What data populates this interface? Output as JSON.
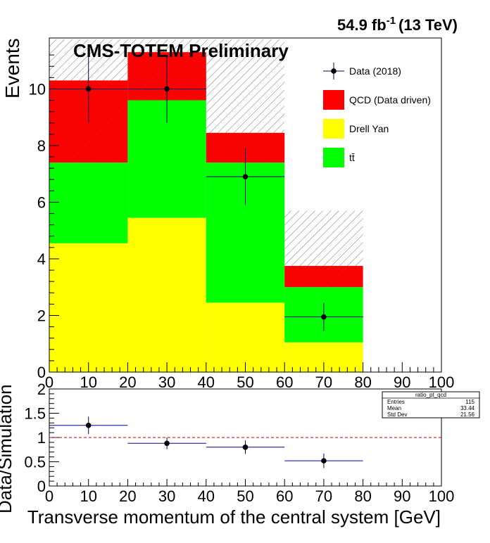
{
  "header": {
    "lumi_value": "54.9 fb",
    "lumi_exp": "-1",
    "lumi_energy": "(13 TeV)",
    "collab": "CMS-TOTEM Preliminary"
  },
  "chart_data": [
    {
      "type": "bar",
      "stacked": true,
      "bin_edges": [
        0,
        20,
        40,
        60,
        80
      ],
      "categories": [
        "0-20",
        "20-40",
        "40-60",
        "60-80"
      ],
      "series": [
        {
          "name": "Drell Yan",
          "values": [
            4.55,
            5.45,
            2.45,
            1.05
          ]
        },
        {
          "name": "tt̄",
          "values": [
            2.85,
            4.15,
            4.95,
            1.95
          ]
        },
        {
          "name": "QCD (Data driven)",
          "values": [
            2.9,
            1.7,
            1.05,
            0.75
          ]
        }
      ],
      "uncertainty_band": {
        "upper": [
          11.75,
          11.75,
          11.75,
          5.7
        ],
        "lower": [
          10.3,
          11.3,
          8.45,
          3.75
        ]
      },
      "data": {
        "name": "Data (2018)",
        "x": [
          10,
          30,
          50,
          70
        ],
        "y": [
          10,
          10,
          6.9,
          1.95
        ],
        "xerr": [
          10,
          10,
          10,
          10
        ],
        "yerr": [
          1.2,
          1.2,
          1.0,
          0.5
        ]
      },
      "ylabel": "Events",
      "xlim": [
        0,
        100
      ],
      "ylim": [
        0,
        11.8
      ],
      "yticks": [
        "0",
        "2",
        "4",
        "6",
        "8",
        "10"
      ],
      "xticks": [
        "0",
        "10",
        "20",
        "30",
        "40",
        "50",
        "60",
        "70",
        "80",
        "90",
        "100"
      ],
      "legend_position": "top-right",
      "colors": {
        "qcd": "#ff0000",
        "dy": "#ffff00",
        "tt": "#00ff00",
        "data": "#000000"
      }
    },
    {
      "type": "scatter",
      "x": [
        10,
        30,
        50,
        70
      ],
      "y": [
        1.25,
        0.88,
        0.8,
        0.52
      ],
      "xerr": [
        10,
        10,
        10,
        10
      ],
      "yerr": [
        0.18,
        0.12,
        0.14,
        0.15
      ],
      "reference_line": 1,
      "ylabel": "Data/Simulation",
      "xlabel": "Transverse momentum of the central system [GeV]",
      "xlim": [
        0,
        100
      ],
      "ylim": [
        0,
        2
      ],
      "yticks": [
        "0",
        "0.5",
        "1",
        "1.5",
        "2"
      ],
      "xticks": [
        "0",
        "10",
        "20",
        "30",
        "40",
        "50",
        "60",
        "70",
        "80",
        "90",
        "100"
      ],
      "colors": {
        "marker": "#000000",
        "xbar": "#000099",
        "ref_line": "#cc0000"
      },
      "stats_box": {
        "title": "ratio_pt_qcd",
        "rows": [
          {
            "label": "Entries",
            "value": "115"
          },
          {
            "label": "Mean",
            "value": "33.44"
          },
          {
            "label": "Std Dev",
            "value": "21.56"
          }
        ]
      }
    }
  ]
}
